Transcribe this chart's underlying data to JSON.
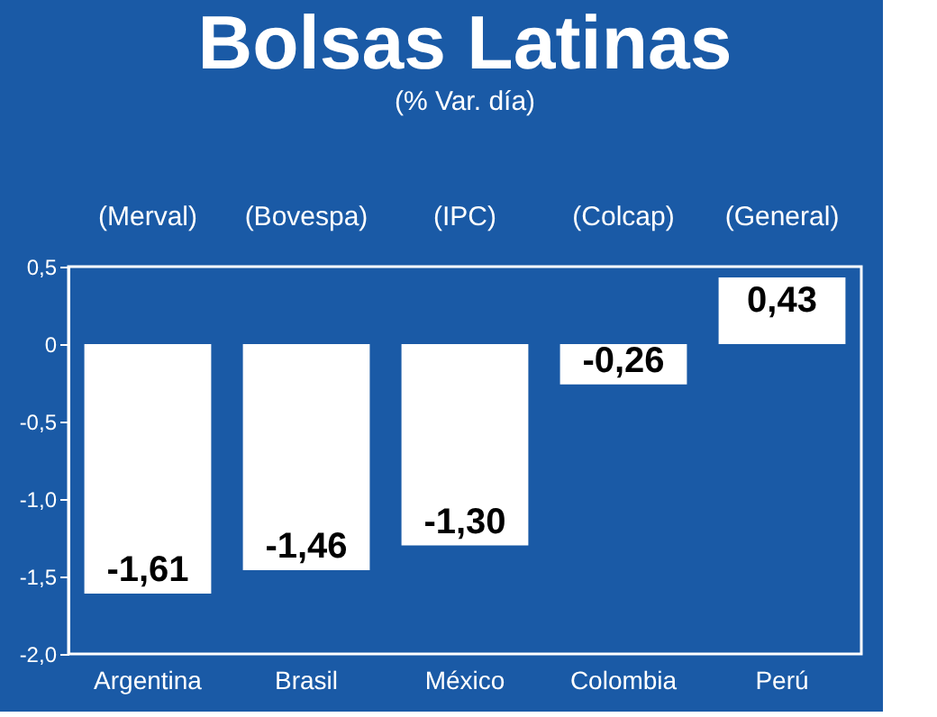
{
  "chart_data": {
    "type": "bar",
    "title": "Bolsas Latinas",
    "subtitle": "(% Var. día)",
    "categories": [
      "Argentina",
      "Brasil",
      "México",
      "Colombia",
      "Perú"
    ],
    "values": [
      -1.61,
      -1.46,
      -1.3,
      -0.26,
      0.43
    ],
    "value_labels": [
      "-1,61",
      "-1,46",
      "-1,30",
      "-0,26",
      "0,43"
    ],
    "color": "#ffffff",
    "ylim": [
      -2.0,
      0.5
    ],
    "yticks": [
      {
        "value": 0.5,
        "label": "0,5"
      },
      0,
      {
        "value": -0.5,
        "label": "-0,5"
      },
      {
        "value": -1.0,
        "label": "-1,0"
      },
      {
        "value": -1.5,
        "label": "-1,5"
      },
      {
        "value": -2.0,
        "label": "-2,0"
      }
    ],
    "annotations": [
      "(Merval)",
      "(Bovespa)",
      "(IPC)",
      "(Colcap)",
      "(General)"
    ],
    "grid": false
  }
}
